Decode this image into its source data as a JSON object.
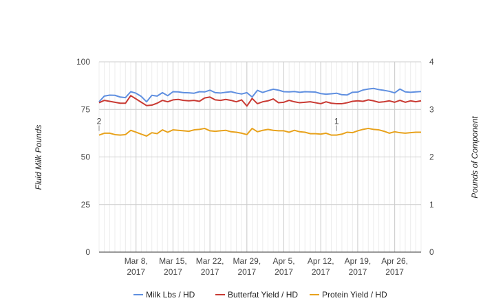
{
  "chart_data": {
    "type": "line",
    "title": "",
    "ylabel": "Fluid Milk Pounds",
    "y2label": "Pounds of Component",
    "ylim": [
      0,
      100
    ],
    "y2lim": [
      0,
      4
    ],
    "yticks": [
      0,
      25,
      50,
      75,
      100
    ],
    "y2ticks": [
      0,
      1,
      2,
      3,
      4
    ],
    "xlim": [
      "2017-03-01",
      "2017-05-01"
    ],
    "xticks": [
      {
        "date": "2017-03-08",
        "line1": "Mar 8,",
        "line2": "2017"
      },
      {
        "date": "2017-03-15",
        "line1": "Mar 15,",
        "line2": "2017"
      },
      {
        "date": "2017-03-22",
        "line1": "Mar 22,",
        "line2": "2017"
      },
      {
        "date": "2017-03-29",
        "line1": "Mar 29,",
        "line2": "2017"
      },
      {
        "date": "2017-04-05",
        "line1": "Apr 5,",
        "line2": "2017"
      },
      {
        "date": "2017-04-12",
        "line1": "Apr 12,",
        "line2": "2017"
      },
      {
        "date": "2017-04-19",
        "line1": "Apr 19,",
        "line2": "2017"
      },
      {
        "date": "2017-04-26",
        "line1": "Apr 26,",
        "line2": "2017"
      }
    ],
    "grid": true,
    "legend": "bottom",
    "annotations": [
      {
        "label": "2",
        "date": "2017-03-01"
      },
      {
        "label": "1",
        "date": "2017-04-15"
      }
    ],
    "series": [
      {
        "name": "Milk Lbs / HD",
        "axis": "left",
        "color": "#5f8fe0",
        "points": [
          [
            "2017-03-01",
            79
          ],
          [
            "2017-03-02",
            82
          ],
          [
            "2017-03-03",
            82.5
          ],
          [
            "2017-03-04",
            82.4
          ],
          [
            "2017-03-05",
            81.5
          ],
          [
            "2017-03-06",
            81.2
          ],
          [
            "2017-03-07",
            84.3
          ],
          [
            "2017-03-08",
            83.5
          ],
          [
            "2017-03-09",
            81.8
          ],
          [
            "2017-03-10",
            79
          ],
          [
            "2017-03-11",
            82.4
          ],
          [
            "2017-03-12",
            82
          ],
          [
            "2017-03-13",
            83.8
          ],
          [
            "2017-03-14",
            82.2
          ],
          [
            "2017-03-15",
            84.3
          ],
          [
            "2017-03-16",
            84.2
          ],
          [
            "2017-03-17",
            83.8
          ],
          [
            "2017-03-18",
            83.7
          ],
          [
            "2017-03-19",
            83.5
          ],
          [
            "2017-03-20",
            84.3
          ],
          [
            "2017-03-21",
            84.2
          ],
          [
            "2017-03-22",
            85.1
          ],
          [
            "2017-03-23",
            83.8
          ],
          [
            "2017-03-24",
            83.6
          ],
          [
            "2017-03-25",
            84
          ],
          [
            "2017-03-26",
            84.3
          ],
          [
            "2017-03-27",
            83.6
          ],
          [
            "2017-03-28",
            83.1
          ],
          [
            "2017-03-29",
            83.8
          ],
          [
            "2017-03-30",
            81.5
          ],
          [
            "2017-03-31",
            85
          ],
          [
            "2017-04-01",
            83.9
          ],
          [
            "2017-04-02",
            84.8
          ],
          [
            "2017-04-03",
            85.6
          ],
          [
            "2017-04-04",
            85.1
          ],
          [
            "2017-04-05",
            84.3
          ],
          [
            "2017-04-06",
            84.2
          ],
          [
            "2017-04-07",
            84.4
          ],
          [
            "2017-04-08",
            84
          ],
          [
            "2017-04-09",
            84.3
          ],
          [
            "2017-04-10",
            84.2
          ],
          [
            "2017-04-11",
            84.1
          ],
          [
            "2017-04-12",
            83.3
          ],
          [
            "2017-04-13",
            83
          ],
          [
            "2017-04-14",
            83.2
          ],
          [
            "2017-04-15",
            83.5
          ],
          [
            "2017-04-16",
            82.7
          ],
          [
            "2017-04-17",
            82.6
          ],
          [
            "2017-04-18",
            84
          ],
          [
            "2017-04-19",
            84.1
          ],
          [
            "2017-04-20",
            85.2
          ],
          [
            "2017-04-21",
            85.7
          ],
          [
            "2017-04-22",
            86
          ],
          [
            "2017-04-23",
            85.4
          ],
          [
            "2017-04-24",
            85
          ],
          [
            "2017-04-25",
            84.5
          ],
          [
            "2017-04-26",
            83.7
          ],
          [
            "2017-04-27",
            85.7
          ],
          [
            "2017-04-28",
            84.2
          ],
          [
            "2017-04-29",
            84
          ],
          [
            "2017-04-30",
            84.2
          ],
          [
            "2017-05-01",
            84.4
          ]
        ]
      },
      {
        "name": "Butterfat Yield / HD",
        "axis": "right",
        "color": "#c93a33",
        "points": [
          [
            "2017-03-01",
            3.14
          ],
          [
            "2017-03-02",
            3.19
          ],
          [
            "2017-03-03",
            3.17
          ],
          [
            "2017-03-04",
            3.15
          ],
          [
            "2017-03-05",
            3.13
          ],
          [
            "2017-03-06",
            3.13
          ],
          [
            "2017-03-07",
            3.29
          ],
          [
            "2017-03-08",
            3.22
          ],
          [
            "2017-03-09",
            3.15
          ],
          [
            "2017-03-10",
            3.08
          ],
          [
            "2017-03-11",
            3.09
          ],
          [
            "2017-03-12",
            3.13
          ],
          [
            "2017-03-13",
            3.19
          ],
          [
            "2017-03-14",
            3.16
          ],
          [
            "2017-03-15",
            3.2
          ],
          [
            "2017-03-16",
            3.21
          ],
          [
            "2017-03-17",
            3.19
          ],
          [
            "2017-03-18",
            3.18
          ],
          [
            "2017-03-19",
            3.19
          ],
          [
            "2017-03-20",
            3.17
          ],
          [
            "2017-03-21",
            3.24
          ],
          [
            "2017-03-22",
            3.26
          ],
          [
            "2017-03-23",
            3.2
          ],
          [
            "2017-03-24",
            3.19
          ],
          [
            "2017-03-25",
            3.21
          ],
          [
            "2017-03-26",
            3.19
          ],
          [
            "2017-03-27",
            3.16
          ],
          [
            "2017-03-28",
            3.2
          ],
          [
            "2017-03-29",
            3.07
          ],
          [
            "2017-03-30",
            3.23
          ],
          [
            "2017-03-31",
            3.12
          ],
          [
            "2017-04-01",
            3.16
          ],
          [
            "2017-04-02",
            3.18
          ],
          [
            "2017-04-03",
            3.22
          ],
          [
            "2017-04-04",
            3.14
          ],
          [
            "2017-04-05",
            3.15
          ],
          [
            "2017-04-06",
            3.19
          ],
          [
            "2017-04-07",
            3.16
          ],
          [
            "2017-04-08",
            3.14
          ],
          [
            "2017-04-09",
            3.15
          ],
          [
            "2017-04-10",
            3.16
          ],
          [
            "2017-04-11",
            3.14
          ],
          [
            "2017-04-12",
            3.12
          ],
          [
            "2017-04-13",
            3.16
          ],
          [
            "2017-04-14",
            3.13
          ],
          [
            "2017-04-15",
            3.12
          ],
          [
            "2017-04-16",
            3.12
          ],
          [
            "2017-04-17",
            3.14
          ],
          [
            "2017-04-18",
            3.17
          ],
          [
            "2017-04-19",
            3.18
          ],
          [
            "2017-04-20",
            3.17
          ],
          [
            "2017-04-21",
            3.2
          ],
          [
            "2017-04-22",
            3.18
          ],
          [
            "2017-04-23",
            3.15
          ],
          [
            "2017-04-24",
            3.16
          ],
          [
            "2017-04-25",
            3.18
          ],
          [
            "2017-04-26",
            3.15
          ],
          [
            "2017-04-27",
            3.19
          ],
          [
            "2017-04-28",
            3.15
          ],
          [
            "2017-04-29",
            3.18
          ],
          [
            "2017-04-30",
            3.16
          ],
          [
            "2017-05-01",
            3.18
          ]
        ]
      },
      {
        "name": "Protein Yield / HD",
        "axis": "right",
        "color": "#e8a21c",
        "points": [
          [
            "2017-03-01",
            2.46
          ],
          [
            "2017-03-02",
            2.5
          ],
          [
            "2017-03-03",
            2.5
          ],
          [
            "2017-03-04",
            2.47
          ],
          [
            "2017-03-05",
            2.46
          ],
          [
            "2017-03-06",
            2.47
          ],
          [
            "2017-03-07",
            2.56
          ],
          [
            "2017-03-08",
            2.52
          ],
          [
            "2017-03-09",
            2.48
          ],
          [
            "2017-03-10",
            2.44
          ],
          [
            "2017-03-11",
            2.51
          ],
          [
            "2017-03-12",
            2.49
          ],
          [
            "2017-03-13",
            2.57
          ],
          [
            "2017-03-14",
            2.52
          ],
          [
            "2017-03-15",
            2.57
          ],
          [
            "2017-03-16",
            2.56
          ],
          [
            "2017-03-17",
            2.55
          ],
          [
            "2017-03-18",
            2.54
          ],
          [
            "2017-03-19",
            2.57
          ],
          [
            "2017-03-20",
            2.58
          ],
          [
            "2017-03-21",
            2.6
          ],
          [
            "2017-03-22",
            2.55
          ],
          [
            "2017-03-23",
            2.54
          ],
          [
            "2017-03-24",
            2.55
          ],
          [
            "2017-03-25",
            2.56
          ],
          [
            "2017-03-26",
            2.53
          ],
          [
            "2017-03-27",
            2.52
          ],
          [
            "2017-03-28",
            2.5
          ],
          [
            "2017-03-29",
            2.47
          ],
          [
            "2017-03-30",
            2.6
          ],
          [
            "2017-03-31",
            2.53
          ],
          [
            "2017-04-01",
            2.56
          ],
          [
            "2017-04-02",
            2.58
          ],
          [
            "2017-04-03",
            2.56
          ],
          [
            "2017-04-04",
            2.55
          ],
          [
            "2017-04-05",
            2.55
          ],
          [
            "2017-04-06",
            2.52
          ],
          [
            "2017-04-07",
            2.56
          ],
          [
            "2017-04-08",
            2.53
          ],
          [
            "2017-04-09",
            2.52
          ],
          [
            "2017-04-10",
            2.49
          ],
          [
            "2017-04-11",
            2.49
          ],
          [
            "2017-04-12",
            2.48
          ],
          [
            "2017-04-13",
            2.5
          ],
          [
            "2017-04-14",
            2.46
          ],
          [
            "2017-04-15",
            2.46
          ],
          [
            "2017-04-16",
            2.48
          ],
          [
            "2017-04-17",
            2.52
          ],
          [
            "2017-04-18",
            2.51
          ],
          [
            "2017-04-19",
            2.55
          ],
          [
            "2017-04-20",
            2.58
          ],
          [
            "2017-04-21",
            2.6
          ],
          [
            "2017-04-22",
            2.58
          ],
          [
            "2017-04-23",
            2.57
          ],
          [
            "2017-04-24",
            2.54
          ],
          [
            "2017-04-25",
            2.5
          ],
          [
            "2017-04-26",
            2.53
          ],
          [
            "2017-04-27",
            2.51
          ],
          [
            "2017-04-28",
            2.5
          ],
          [
            "2017-04-29",
            2.51
          ],
          [
            "2017-04-30",
            2.52
          ],
          [
            "2017-05-01",
            2.52
          ]
        ]
      }
    ]
  }
}
